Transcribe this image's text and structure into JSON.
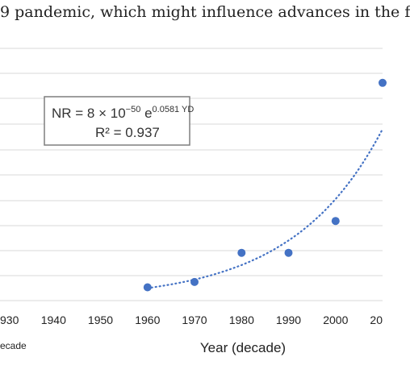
{
  "caption_top": "9 pandemic, which might influence advances in the f",
  "caption_bottom": "",
  "chart_data": {
    "type": "scatter",
    "title": "",
    "xlabel": "Year (decade)",
    "side_label": "ecade",
    "x_ticks": [
      "930",
      "1940",
      "1950",
      "1960",
      "1970",
      "1980",
      "1990",
      "2000",
      "20"
    ],
    "points": [
      {
        "x": 1960,
        "y": 0.5
      },
      {
        "x": 1970,
        "y": 0.7
      },
      {
        "x": 1980,
        "y": 1.8
      },
      {
        "x": 1990,
        "y": 1.8
      },
      {
        "x": 2000,
        "y": 3.0
      },
      {
        "x": 2010,
        "y": 8.2
      }
    ],
    "trendline": {
      "type": "exponential",
      "style": "dotted",
      "equation_main": "NR = 8 × 10",
      "equation_exp": "−50",
      "equation_e": " e",
      "equation_e_exp": "0.0581 YD",
      "r2_label": "R² = 0.937"
    },
    "xlim": [
      1930,
      2010
    ],
    "ylim": [
      0,
      9.5
    ],
    "grid": true,
    "colors": {
      "marker": "#4472c4",
      "trend": "#4472c4",
      "grid": "#d9d9d9"
    }
  }
}
